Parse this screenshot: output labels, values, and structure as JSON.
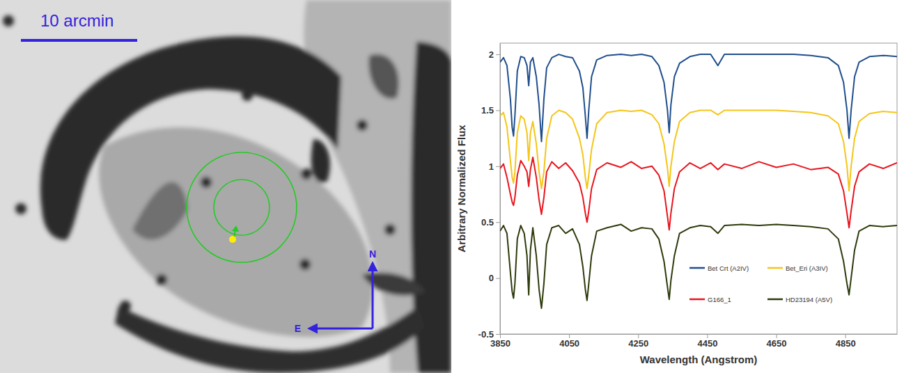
{
  "image": {
    "scale_bar": "10 arcmin",
    "compass": {
      "north": "N",
      "east": "E"
    }
  },
  "chart_data": {
    "type": "line",
    "x_label": "Wavelength (Angstrom)",
    "y_label": "Arbitrary Normalized Flux",
    "xlim": [
      3850,
      5000
    ],
    "xticks": [
      3850,
      4050,
      4250,
      4450,
      4650,
      4850
    ],
    "ylim": [
      -0.5,
      2.1
    ],
    "yticks": [
      -0.5,
      0,
      0.5,
      1,
      1.5,
      2
    ],
    "grid": false,
    "legend": "lower right",
    "x": [
      3850,
      3860,
      3870,
      3880,
      3885,
      3889,
      3893,
      3900,
      3910,
      3920,
      3928,
      3933,
      3938,
      3945,
      3955,
      3963,
      3970,
      3977,
      3985,
      4000,
      4020,
      4040,
      4060,
      4080,
      4090,
      4097,
      4102,
      4107,
      4115,
      4130,
      4160,
      4200,
      4230,
      4260,
      4290,
      4310,
      4325,
      4335,
      4340,
      4345,
      4355,
      4370,
      4400,
      4430,
      4460,
      4481,
      4500,
      4550,
      4600,
      4650,
      4700,
      4750,
      4800,
      4830,
      4845,
      4855,
      4861,
      4867,
      4877,
      4890,
      4920,
      4960,
      5000
    ],
    "series": [
      {
        "name": "Bet Crt (A2IV)",
        "color": "#1f4e8c",
        "values": [
          1.93,
          1.97,
          1.9,
          1.6,
          1.35,
          1.27,
          1.45,
          1.85,
          1.98,
          1.97,
          1.9,
          1.72,
          1.93,
          1.97,
          1.8,
          1.55,
          1.22,
          1.6,
          1.88,
          1.97,
          2.0,
          1.98,
          1.97,
          1.85,
          1.7,
          1.45,
          1.25,
          1.5,
          1.8,
          1.95,
          1.99,
          2.0,
          1.99,
          2.0,
          1.98,
          1.9,
          1.75,
          1.5,
          1.3,
          1.55,
          1.8,
          1.92,
          1.98,
          2.0,
          2.0,
          1.9,
          2.0,
          2.0,
          2.0,
          2.0,
          2.0,
          1.99,
          1.97,
          1.9,
          1.75,
          1.5,
          1.25,
          1.5,
          1.8,
          1.93,
          1.98,
          1.99,
          1.98
        ]
      },
      {
        "name": "Bet_Eri (A3IV)",
        "color": "#f5c518",
        "values": [
          1.45,
          1.48,
          1.35,
          1.05,
          0.9,
          0.85,
          0.95,
          1.3,
          1.45,
          1.42,
          1.3,
          1.05,
          1.3,
          1.4,
          1.2,
          0.95,
          0.8,
          0.95,
          1.25,
          1.45,
          1.5,
          1.48,
          1.42,
          1.25,
          1.1,
          0.9,
          0.8,
          0.92,
          1.15,
          1.38,
          1.48,
          1.5,
          1.49,
          1.5,
          1.46,
          1.38,
          1.2,
          0.98,
          0.82,
          1.0,
          1.22,
          1.4,
          1.48,
          1.5,
          1.5,
          1.46,
          1.5,
          1.5,
          1.5,
          1.5,
          1.49,
          1.48,
          1.45,
          1.38,
          1.22,
          1.0,
          0.78,
          1.0,
          1.25,
          1.4,
          1.47,
          1.49,
          1.48
        ]
      },
      {
        "name": "G166_1",
        "color": "#e8141c",
        "values": [
          0.98,
          1.02,
          0.9,
          0.75,
          0.68,
          0.65,
          0.72,
          0.92,
          1.05,
          1.0,
          0.95,
          0.82,
          0.97,
          1.08,
          0.9,
          0.7,
          0.57,
          0.72,
          0.95,
          1.04,
          0.98,
          1.03,
          0.96,
          0.85,
          0.72,
          0.58,
          0.5,
          0.6,
          0.8,
          0.97,
          1.03,
          0.99,
          1.04,
          0.98,
          1.0,
          0.92,
          0.78,
          0.55,
          0.43,
          0.58,
          0.8,
          0.95,
          1.03,
          0.98,
          1.03,
          0.97,
          1.02,
          0.98,
          1.04,
          0.99,
          1.02,
          0.97,
          0.99,
          0.93,
          0.78,
          0.58,
          0.45,
          0.6,
          0.82,
          0.95,
          1.02,
          0.98,
          1.03
        ]
      },
      {
        "name": "HD23194 (A5V)",
        "color": "#2d3a0a",
        "values": [
          0.42,
          0.47,
          0.4,
          0.05,
          -0.12,
          -0.18,
          -0.05,
          0.35,
          0.47,
          0.4,
          0.2,
          -0.15,
          0.25,
          0.45,
          0.2,
          -0.1,
          -0.27,
          -0.05,
          0.3,
          0.45,
          0.47,
          0.4,
          0.44,
          0.3,
          0.1,
          -0.1,
          -0.2,
          -0.05,
          0.2,
          0.42,
          0.45,
          0.48,
          0.42,
          0.45,
          0.44,
          0.35,
          0.15,
          -0.08,
          -0.19,
          -0.02,
          0.2,
          0.4,
          0.45,
          0.47,
          0.46,
          0.4,
          0.47,
          0.48,
          0.47,
          0.48,
          0.47,
          0.46,
          0.44,
          0.35,
          0.15,
          -0.05,
          -0.15,
          0.0,
          0.25,
          0.42,
          0.47,
          0.46,
          0.47
        ]
      }
    ]
  }
}
